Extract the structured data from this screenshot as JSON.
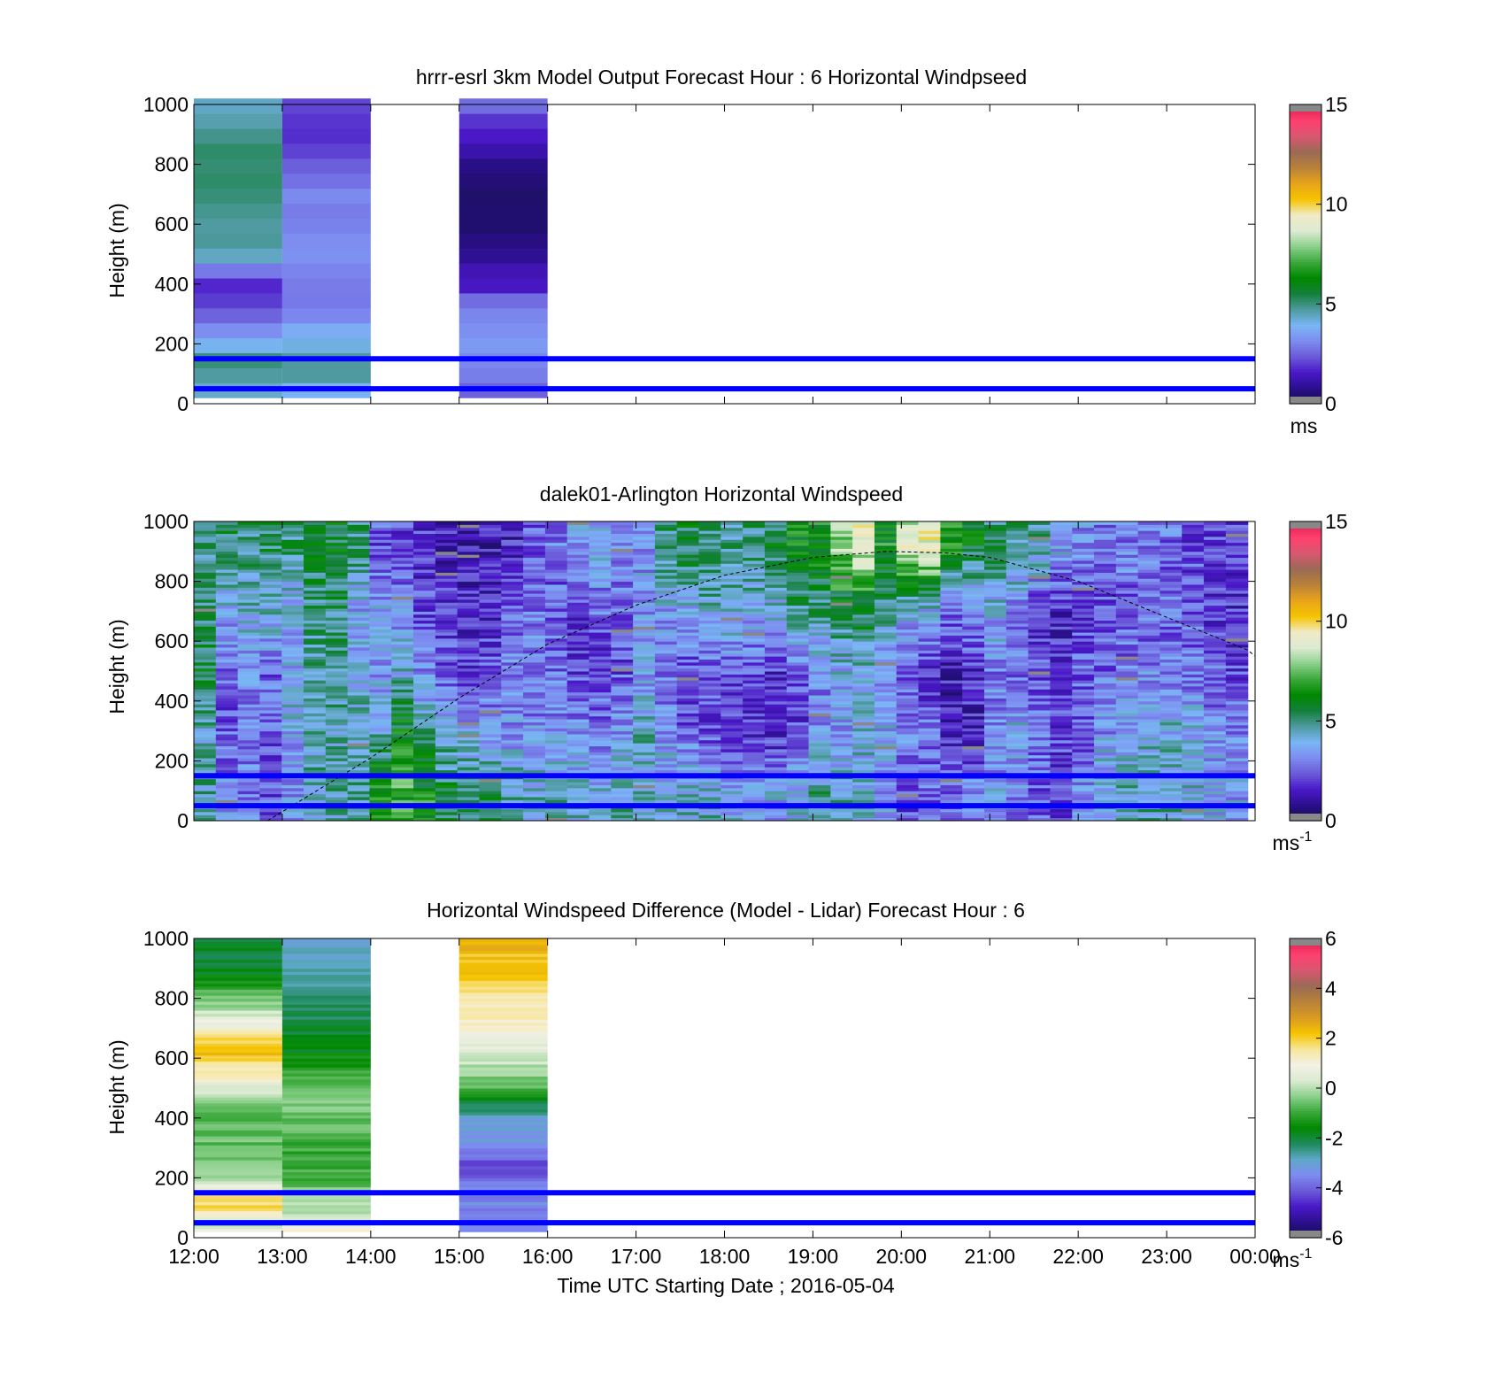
{
  "figure": {
    "xlabel": "Time UTC  Starting Date ; 2016-05-04"
  },
  "colors": {
    "reference_lines": "#0000ff",
    "missing": "#888888",
    "speed_colormap": [
      "#888888",
      "#16104a",
      "#2a0f8c",
      "#4a18c8",
      "#6a5ad8",
      "#7d8cf0",
      "#7ab6f5",
      "#4f9aa0",
      "#14803c",
      "#008800",
      "#3aa83a",
      "#8cd08c",
      "#dcebd2",
      "#f0eac8",
      "#f5c400",
      "#e8a41a",
      "#b8823a",
      "#9a6a54",
      "#d85870",
      "#ff3f6e",
      "#d81e4a",
      "#888888"
    ],
    "diff_colormap": [
      "#888888",
      "#16104a",
      "#2a0f8c",
      "#4a18c8",
      "#6a5ad8",
      "#7d8cf0",
      "#5fa8c8",
      "#1e8a5a",
      "#008800",
      "#3aa83a",
      "#8cd08c",
      "#dcebd2",
      "#f4f1e6",
      "#f7e69a",
      "#f5c400",
      "#d89a22",
      "#b8823a",
      "#9a6a54",
      "#d85870",
      "#ff3f6e",
      "#d81e4a",
      "#888888"
    ]
  },
  "chart_data": [
    {
      "type": "heatmap",
      "title": "hrrr-esrl 3km Model Output   Forecast Hour : 6 Horizontal Windpseed",
      "ylabel": "Height (m)",
      "xlim": [
        "12:00",
        "00:00"
      ],
      "ylim": [
        0,
        1000
      ],
      "yticks": [
        0,
        200,
        400,
        600,
        800,
        1000
      ],
      "x_tick_labels": [],
      "reference_lines_m": [
        150,
        50
      ],
      "colorbar": {
        "range": [
          0,
          15
        ],
        "ticks": [
          0,
          5,
          10,
          15
        ],
        "unit_label": "ms",
        "unit_superscript": ""
      },
      "columns": [
        {
          "start": "12:00",
          "end": "13:00",
          "profile": [
            [
              30,
              3.5
            ],
            [
              50,
              4.5
            ],
            [
              75,
              5
            ],
            [
              100,
              4.5
            ],
            [
              150,
              5
            ],
            [
              175,
              4.5
            ],
            [
              200,
              3.8
            ],
            [
              250,
              3
            ],
            [
              350,
              1.8
            ],
            [
              400,
              1.6
            ],
            [
              450,
              3
            ],
            [
              500,
              4.5
            ],
            [
              600,
              4.8
            ],
            [
              700,
              5
            ],
            [
              800,
              5.2
            ],
            [
              900,
              4.8
            ],
            [
              1000,
              4.3
            ]
          ]
        },
        {
          "start": "13:00",
          "end": "14:00",
          "profile": [
            [
              30,
              3.3
            ],
            [
              75,
              4.7
            ],
            [
              150,
              4.8
            ],
            [
              200,
              4.2
            ],
            [
              250,
              3.6
            ],
            [
              300,
              3.0
            ],
            [
              400,
              2.8
            ],
            [
              450,
              3.0
            ],
            [
              500,
              3.3
            ],
            [
              600,
              3.1
            ],
            [
              700,
              3.0
            ],
            [
              800,
              2.3
            ],
            [
              900,
              1.8
            ],
            [
              1000,
              2.1
            ]
          ]
        },
        {
          "start": "15:00",
          "end": "16:00",
          "profile": [
            [
              30,
              2.2
            ],
            [
              50,
              2.6
            ],
            [
              100,
              3.0
            ],
            [
              150,
              3.2
            ],
            [
              200,
              3.4
            ],
            [
              250,
              3.3
            ],
            [
              300,
              3.0
            ],
            [
              350,
              2.5
            ],
            [
              400,
              1.5
            ],
            [
              450,
              1.2
            ],
            [
              500,
              0.8
            ],
            [
              600,
              0.5
            ],
            [
              700,
              0.4
            ],
            [
              800,
              0.8
            ],
            [
              900,
              1.5
            ],
            [
              1000,
              2.6
            ]
          ]
        }
      ]
    },
    {
      "type": "heatmap",
      "title": "dalek01-Arlington  Horizontal Windspeed",
      "ylabel": "Height (m)",
      "xlim": [
        "12:00",
        "00:00"
      ],
      "ylim": [
        0,
        1000
      ],
      "yticks": [
        0,
        200,
        400,
        600,
        800,
        1000
      ],
      "x_tick_labels": [],
      "reference_lines_m": [
        150,
        50
      ],
      "colorbar": {
        "range": [
          0,
          15
        ],
        "ticks": [
          0,
          5,
          10,
          15
        ],
        "unit_label": "ms",
        "unit_superscript": "-1"
      },
      "data_end": "23:55",
      "column_minutes": 15,
      "profiles_every_15_min": [
        [
          4.6,
          4.3,
          5.6,
          5.4,
          4.7
        ],
        [
          3.1,
          2.5,
          2.6,
          3.7,
          5.4
        ],
        [
          2.8,
          3.1,
          3.3,
          4.0,
          5.0
        ],
        [
          2.4,
          2.5,
          2.7,
          4.1,
          5.2
        ],
        [
          3.3,
          3.8,
          3.8,
          3.8,
          5.0
        ],
        [
          4.5,
          4.6,
          4.5,
          5.0,
          5.5
        ],
        [
          4.5,
          4.4,
          4.8,
          5.1,
          5.7
        ],
        [
          4.7,
          4.6,
          3.8,
          3.5,
          5.0
        ],
        [
          6.9,
          4.3,
          3.3,
          3.6,
          2.4
        ],
        [
          7.0,
          6.1,
          4.1,
          3.3,
          2.2
        ],
        [
          6.5,
          4.7,
          3.0,
          2.3,
          1.9
        ],
        [
          5.6,
          4.0,
          2.5,
          1.9,
          1.6
        ],
        [
          5.3,
          3.6,
          2.2,
          1.7,
          1.5
        ],
        [
          5.1,
          3.5,
          2.4,
          1.7,
          1.4
        ],
        [
          4.7,
          3.3,
          3.0,
          2.4,
          1.6
        ],
        [
          4.4,
          3.2,
          2.9,
          3.0,
          2.5
        ],
        [
          4.4,
          3.3,
          2.9,
          2.3,
          2.9
        ],
        [
          4.2,
          3.2,
          2.3,
          2.1,
          3.5
        ],
        [
          4.0,
          3.0,
          2.0,
          2.7,
          3.8
        ],
        [
          4.5,
          3.4,
          2.4,
          2.5,
          3.3
        ],
        [
          4.2,
          4.4,
          3.5,
          3.2,
          3.5
        ],
        [
          4.0,
          3.2,
          2.8,
          3.6,
          4.9
        ],
        [
          4.2,
          2.6,
          2.2,
          3.8,
          5.5
        ],
        [
          4.3,
          2.2,
          2.3,
          4.2,
          5.1
        ],
        [
          3.8,
          1.9,
          2.5,
          4.3,
          5.0
        ],
        [
          3.5,
          1.7,
          2.3,
          3.8,
          5.2
        ],
        [
          3.6,
          1.6,
          2.0,
          3.9,
          5.4
        ],
        [
          4.0,
          2.2,
          2.6,
          4.9,
          6.2
        ],
        [
          4.8,
          3.0,
          3.2,
          5.0,
          6.4
        ],
        [
          4.4,
          3.5,
          3.9,
          5.4,
          8.0
        ],
        [
          4.0,
          4.0,
          4.3,
          5.7,
          8.8
        ],
        [
          3.2,
          3.6,
          3.2,
          4.7,
          6.5
        ],
        [
          2.3,
          3.0,
          2.5,
          3.9,
          8.5
        ],
        [
          2.6,
          2.8,
          2.0,
          3.8,
          9.0
        ],
        [
          2.7,
          1.4,
          1.4,
          2.8,
          6.4
        ],
        [
          3.1,
          1.6,
          1.8,
          3.3,
          5.6
        ],
        [
          3.5,
          3.0,
          3.0,
          3.8,
          5.2
        ],
        [
          3.0,
          3.8,
          2.8,
          3.0,
          5.0
        ],
        [
          2.4,
          3.0,
          2.3,
          2.0,
          4.5
        ],
        [
          2.1,
          2.2,
          1.9,
          1.7,
          3.6
        ],
        [
          3.3,
          2.4,
          2.5,
          2.2,
          3.2
        ],
        [
          4.2,
          3.3,
          2.6,
          2.3,
          2.9
        ],
        [
          4.3,
          3.8,
          2.9,
          2.5,
          3.0
        ],
        [
          4.6,
          4.2,
          3.0,
          2.6,
          2.9
        ],
        [
          4.4,
          4.1,
          3.1,
          2.6,
          2.7
        ],
        [
          4.0,
          3.7,
          2.9,
          2.3,
          2.4
        ],
        [
          3.8,
          3.3,
          2.5,
          2.0,
          2.1
        ],
        [
          3.5,
          3.0,
          2.2,
          1.9,
          2.0
        ]
      ],
      "profile_heights_m": [
        100,
        300,
        500,
        700,
        900
      ],
      "dashed_curve": {
        "x": [
          "12:50",
          "14:00",
          "15:00",
          "16:00",
          "17:00",
          "18:00",
          "19:00",
          "19:50",
          "20:30",
          "21:00",
          "22:00",
          "23:00",
          "23:55",
          "00:00"
        ],
        "y_m": [
          0,
          210,
          410,
          590,
          720,
          820,
          880,
          900,
          895,
          880,
          800,
          680,
          570,
          550
        ]
      }
    },
    {
      "type": "heatmap",
      "title": "Horizontal Windspeed Difference (Model - Lidar) Forecast Hour : 6",
      "ylabel": "Height (m)",
      "xlim": [
        "12:00",
        "00:00"
      ],
      "ylim": [
        0,
        1000
      ],
      "yticks": [
        0,
        200,
        400,
        600,
        800,
        1000
      ],
      "x_tick_labels": [
        "12:00",
        "13:00",
        "14:00",
        "15:00",
        "16:00",
        "17:00",
        "18:00",
        "19:00",
        "20:00",
        "21:00",
        "22:00",
        "23:00",
        "00:00"
      ],
      "reference_lines_m": [
        150,
        50
      ],
      "colorbar": {
        "range": [
          -6,
          6
        ],
        "ticks": [
          -6,
          -4,
          -2,
          0,
          2,
          4,
          6
        ],
        "unit_label": "ms",
        "unit_superscript": "-1"
      },
      "columns": [
        {
          "start": "12:00",
          "end": "13:00",
          "profile": [
            [
              20,
              0.8
            ],
            [
              50,
              0
            ],
            [
              100,
              1.8
            ],
            [
              150,
              1.5
            ],
            [
              200,
              -0.3
            ],
            [
              300,
              -0.6
            ],
            [
              400,
              -0.8
            ],
            [
              450,
              -0.5
            ],
            [
              500,
              0.4
            ],
            [
              550,
              1.2
            ],
            [
              620,
              2.3
            ],
            [
              680,
              1.5
            ],
            [
              720,
              0.8
            ],
            [
              780,
              -0.3
            ],
            [
              850,
              -1.3
            ],
            [
              900,
              -1.8
            ],
            [
              960,
              -2.0
            ],
            [
              1000,
              -2.2
            ]
          ]
        },
        {
          "start": "13:00",
          "end": "14:00",
          "profile": [
            [
              20,
              1.0
            ],
            [
              50,
              0.3
            ],
            [
              100,
              0.1
            ],
            [
              150,
              -0.2
            ],
            [
              200,
              -0.9
            ],
            [
              300,
              -1.0
            ],
            [
              400,
              -0.5
            ],
            [
              450,
              -0.3
            ],
            [
              500,
              -0.6
            ],
            [
              600,
              -1.5
            ],
            [
              700,
              -2.0
            ],
            [
              800,
              -2.4
            ],
            [
              900,
              -2.6
            ],
            [
              1000,
              -3.2
            ]
          ]
        },
        {
          "start": "15:00",
          "end": "16:00",
          "profile": [
            [
              20,
              -3.5
            ],
            [
              50,
              -3.5
            ],
            [
              100,
              -3.5
            ],
            [
              150,
              -3.5
            ],
            [
              200,
              -3.9
            ],
            [
              250,
              -4.2
            ],
            [
              300,
              -3.3
            ],
            [
              400,
              -2.9
            ],
            [
              450,
              -2.0
            ],
            [
              500,
              -0.8
            ],
            [
              600,
              0.3
            ],
            [
              700,
              1.0
            ],
            [
              800,
              1.5
            ],
            [
              900,
              2.1
            ],
            [
              1000,
              2.4
            ]
          ]
        }
      ]
    }
  ]
}
